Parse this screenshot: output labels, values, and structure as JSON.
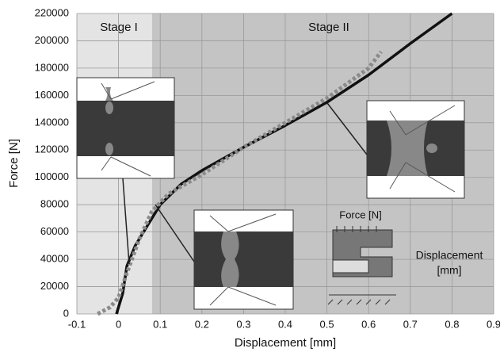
{
  "chart_data": {
    "type": "line",
    "xlabel": "Displacement [mm]",
    "ylabel": "Force [N]",
    "xlim": [
      -0.1,
      0.9
    ],
    "xticks": [
      -0.1,
      0,
      0.1,
      0.2,
      0.3,
      0.4,
      0.5,
      0.6,
      0.7,
      0.8,
      0.9
    ],
    "ylim": [
      0,
      220000
    ],
    "yticks": [
      0,
      20000,
      40000,
      60000,
      80000,
      100000,
      120000,
      140000,
      160000,
      180000,
      200000,
      220000
    ],
    "grid": true,
    "series": [
      {
        "color": "#111111",
        "style": "solid",
        "x": [
          -0.005,
          0,
          0.01,
          0.02,
          0.04,
          0.07,
          0.1,
          0.15,
          0.2,
          0.3,
          0.4,
          0.5,
          0.6,
          0.7,
          0.8
        ],
        "values": [
          0,
          5000,
          15000,
          35000,
          50000,
          65000,
          80000,
          95000,
          105000,
          122000,
          138000,
          155000,
          175000,
          198000,
          220000
        ]
      },
      {
        "color": "#8a8a8a",
        "style": "dotted",
        "x": [
          -0.05,
          -0.02,
          0,
          0.02,
          0.05,
          0.08,
          0.12,
          0.2,
          0.3,
          0.4,
          0.5,
          0.6,
          0.63
        ],
        "values": [
          0,
          5000,
          12000,
          30000,
          55000,
          75000,
          88000,
          102000,
          122000,
          140000,
          158000,
          180000,
          192000
        ]
      }
    ],
    "annotations": [
      "Stage I",
      "Stage II",
      "Force [N]",
      "Displacement",
      "[mm]"
    ]
  }
}
